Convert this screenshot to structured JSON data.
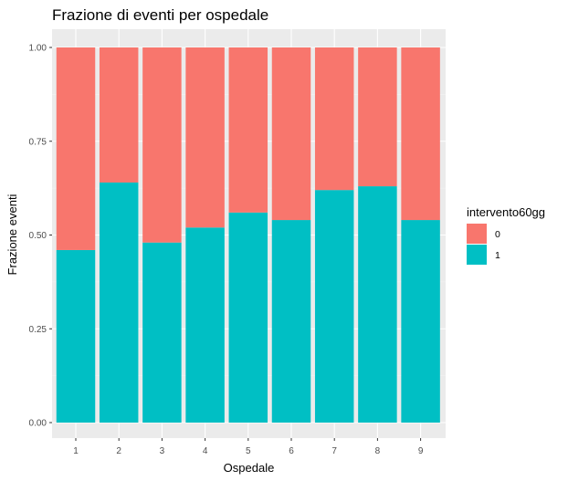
{
  "chart_data": {
    "type": "bar",
    "stacked": true,
    "normalized": true,
    "title": "Frazione di eventi per ospedale",
    "xlabel": "Ospedale",
    "ylabel": "Frazione eventi",
    "categories": [
      "1",
      "2",
      "3",
      "4",
      "5",
      "6",
      "7",
      "8",
      "9"
    ],
    "ylim": [
      0,
      1
    ],
    "yticks": [
      "0.00",
      "0.25",
      "0.50",
      "0.75",
      "1.00"
    ],
    "series": [
      {
        "name": "1",
        "color": "#00BFC4",
        "values": [
          0.46,
          0.64,
          0.48,
          0.52,
          0.56,
          0.54,
          0.62,
          0.63,
          0.54
        ]
      },
      {
        "name": "0",
        "color": "#F8766D",
        "values": [
          0.54,
          0.36,
          0.52,
          0.48,
          0.44,
          0.46,
          0.38,
          0.37,
          0.46
        ]
      }
    ],
    "legend": {
      "title": "intervento60gg",
      "placement": "right",
      "items": [
        {
          "label": "0",
          "color": "#F8766D"
        },
        {
          "label": "1",
          "color": "#00BFC4"
        }
      ]
    },
    "grid": true,
    "panel_background": "#EBEBEB"
  }
}
